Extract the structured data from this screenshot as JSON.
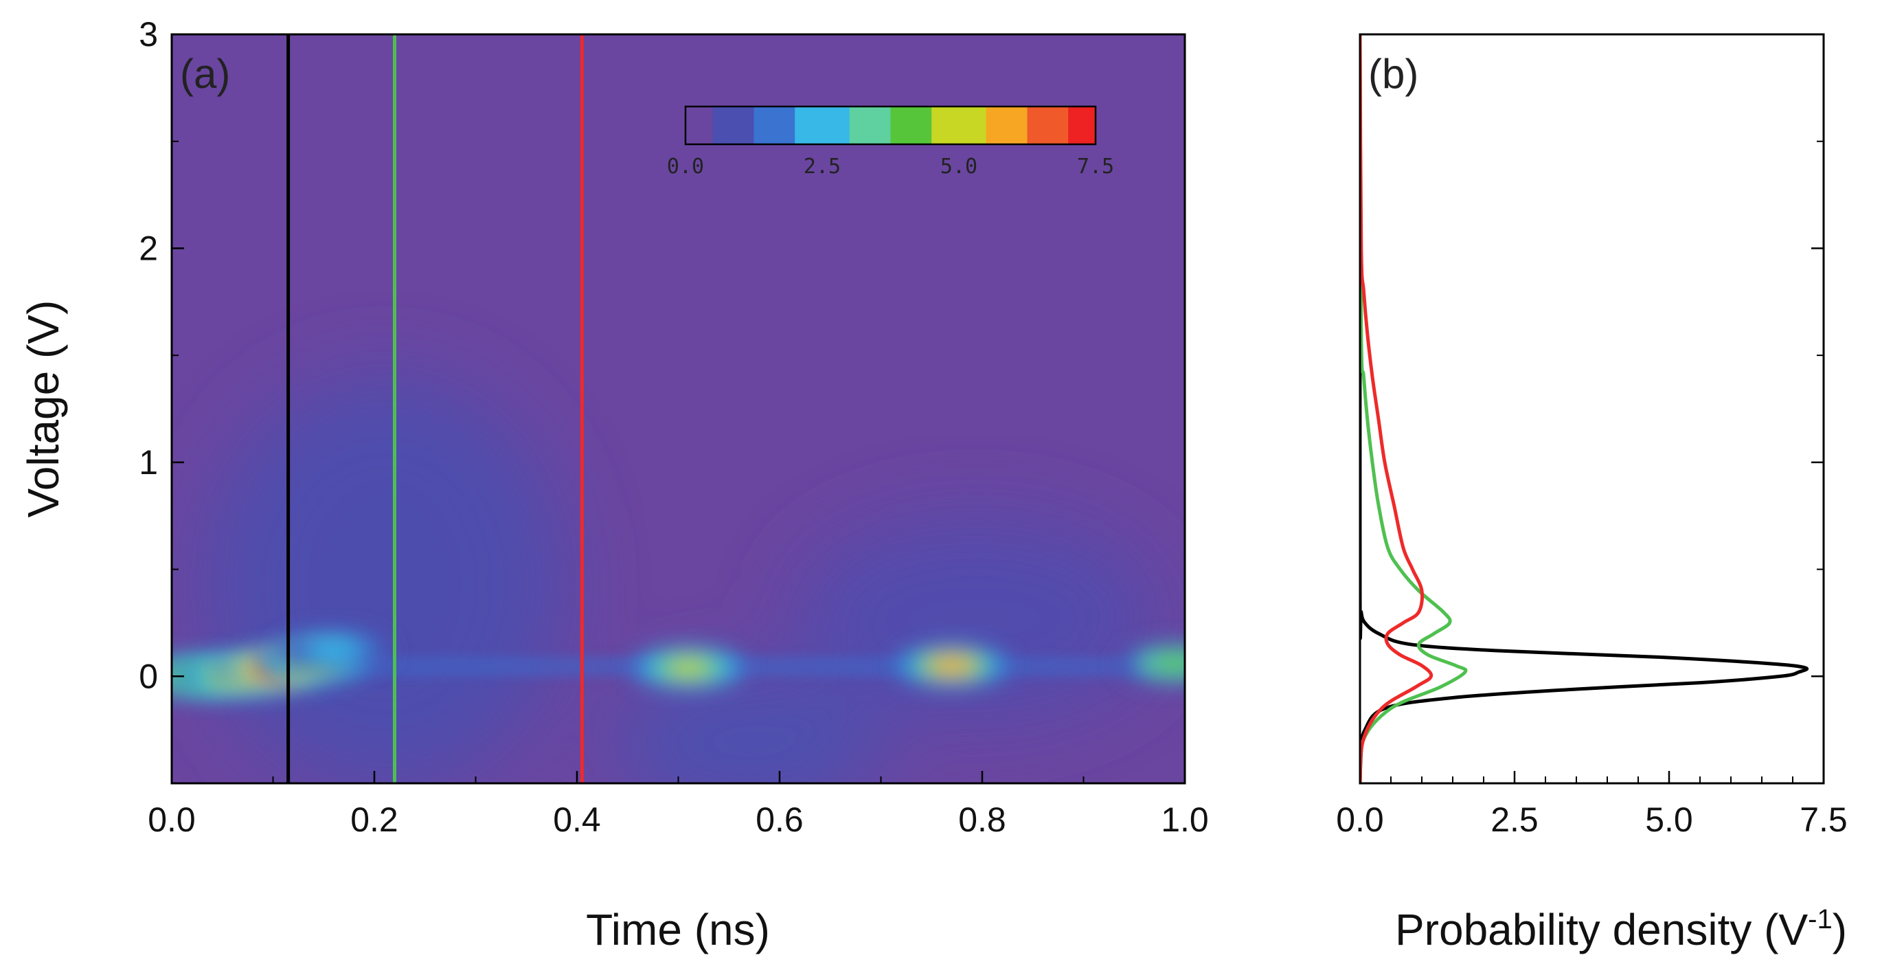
{
  "chart_data": [
    {
      "type": "heatmap",
      "panel_label": "(a)",
      "xlabel": "Time (ns)",
      "ylabel": "Voltage (V)",
      "xlim": [
        0.0,
        1.0
      ],
      "ylim": [
        -0.5,
        3.0
      ],
      "x_ticks": [
        "0.0",
        "0.2",
        "0.4",
        "0.6",
        "0.8",
        "1.0"
      ],
      "x_tick_values": [
        0.0,
        0.2,
        0.4,
        0.6,
        0.8,
        1.0
      ],
      "y_ticks": [
        "0",
        "1",
        "2",
        "3"
      ],
      "y_tick_values": [
        0,
        1,
        2,
        3
      ],
      "background_color": "#6a46a0",
      "colorbar": {
        "range": [
          0.0,
          7.5
        ],
        "ticks": [
          "0.0",
          "2.5",
          "5.0",
          "7.5"
        ],
        "tick_values": [
          0.0,
          2.5,
          5.0,
          7.5
        ],
        "colors": [
          "#6a46a0",
          "#4a4fb0",
          "#3a73d0",
          "#38b8e6",
          "#5fd0a0",
          "#56c53a",
          "#c8d624",
          "#f6a623",
          "#f05a2a",
          "#ee2222"
        ]
      },
      "markers": [
        {
          "time": 0.115,
          "color": "#000000"
        },
        {
          "time": 0.22,
          "color": "#4fc04f"
        },
        {
          "time": 0.405,
          "color": "#ee2a2a"
        }
      ],
      "blobs": [
        {
          "t": 0.02,
          "v": 0.0,
          "peak": 4.8
        },
        {
          "t": 0.06,
          "v": 0.0,
          "peak": 5.2
        },
        {
          "t": 0.1,
          "v": 0.03,
          "peak": 7.2
        },
        {
          "t": 0.14,
          "v": 0.07,
          "peak": 5.5
        },
        {
          "t": 0.16,
          "v": 0.12,
          "peak": 3.0
        },
        {
          "t": 0.51,
          "v": 0.04,
          "peak": 5.0
        },
        {
          "t": 0.77,
          "v": 0.05,
          "peak": 6.3
        },
        {
          "t": 0.99,
          "v": 0.06,
          "peak": 4.5
        }
      ]
    },
    {
      "type": "line",
      "panel_label": "(b)",
      "xlabel_base": "Probability density (V",
      "xlabel_sup": "-1",
      "xlabel_end": ")",
      "xlim": [
        0.0,
        7.5
      ],
      "ylim": [
        -0.5,
        3.0
      ],
      "x_ticks": [
        "0.0",
        "2.5",
        "5.0",
        "7.5"
      ],
      "x_tick_values": [
        0.0,
        2.5,
        5.0,
        7.5
      ],
      "series": [
        {
          "color": "#000000",
          "voltage": [
            -0.5,
            -0.35,
            -0.25,
            -0.15,
            -0.1,
            -0.06,
            -0.03,
            0.0,
            0.02,
            0.04,
            0.06,
            0.09,
            0.12,
            0.15,
            0.2,
            0.25,
            0.3,
            0.4,
            3.0
          ],
          "density": [
            0.0,
            0.02,
            0.08,
            0.4,
            1.5,
            3.5,
            5.5,
            6.8,
            7.1,
            7.2,
            6.6,
            4.8,
            2.2,
            0.8,
            0.3,
            0.08,
            0.02,
            0.0,
            0.0
          ]
        },
        {
          "color": "#4fc04f",
          "voltage": [
            -0.5,
            -0.3,
            -0.15,
            -0.05,
            0.02,
            0.05,
            0.1,
            0.15,
            0.2,
            0.25,
            0.3,
            0.4,
            0.5,
            0.6,
            0.8,
            1.0,
            1.2,
            1.4,
            1.6,
            3.0
          ],
          "density": [
            0.0,
            0.05,
            0.5,
            1.3,
            1.7,
            1.55,
            1.1,
            0.95,
            1.2,
            1.45,
            1.35,
            0.95,
            0.65,
            0.45,
            0.3,
            0.2,
            0.12,
            0.06,
            0.02,
            0.0
          ]
        },
        {
          "color": "#ee2a2a",
          "voltage": [
            -0.5,
            -0.3,
            -0.15,
            -0.05,
            0.0,
            0.05,
            0.1,
            0.15,
            0.2,
            0.25,
            0.3,
            0.4,
            0.5,
            0.6,
            0.8,
            1.0,
            1.2,
            1.4,
            1.6,
            1.8,
            2.0,
            3.0
          ],
          "density": [
            0.0,
            0.05,
            0.35,
            0.9,
            1.15,
            1.0,
            0.65,
            0.45,
            0.45,
            0.7,
            0.95,
            1.0,
            0.85,
            0.7,
            0.55,
            0.4,
            0.3,
            0.2,
            0.12,
            0.06,
            0.02,
            0.0
          ]
        }
      ]
    }
  ]
}
